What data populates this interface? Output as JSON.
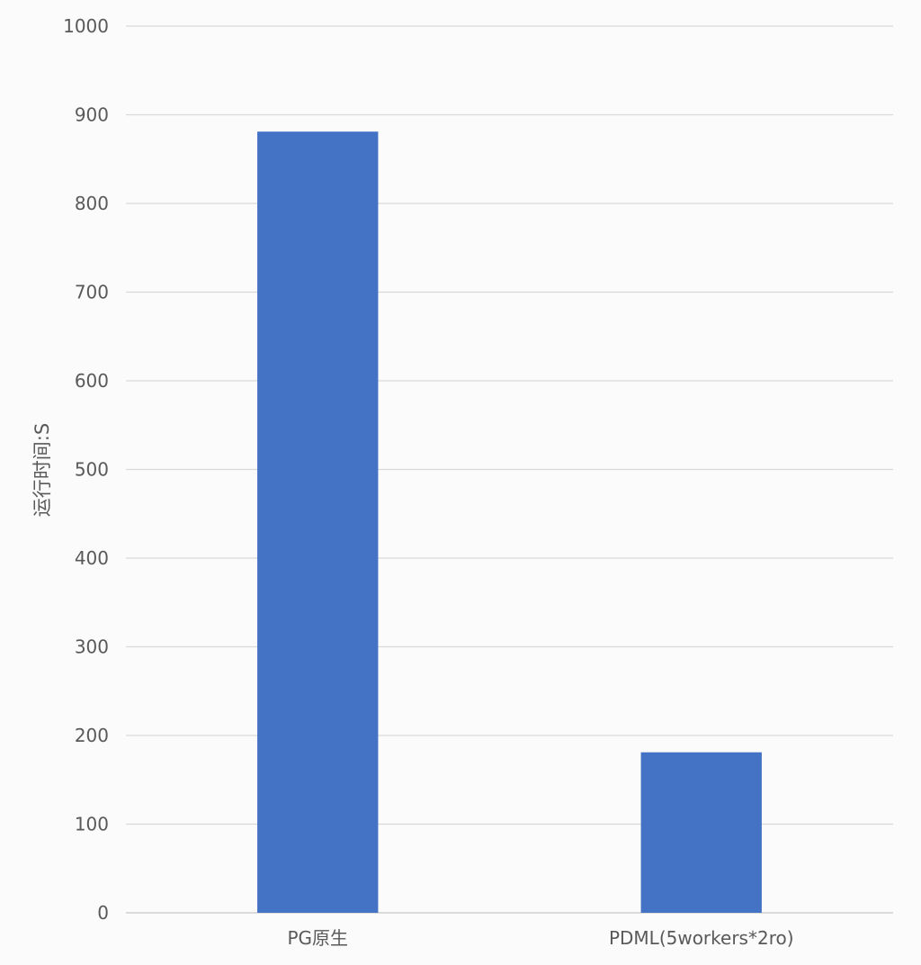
{
  "chart_data": {
    "type": "bar",
    "title": "",
    "xlabel": "",
    "ylabel": "运行时间:S",
    "categories": [
      "PG原生",
      "PDML(5workers*2ro)"
    ],
    "series": [
      {
        "values": [
          881,
          181
        ],
        "color": "#4472c4"
      }
    ],
    "ylim": [
      0,
      1000
    ],
    "yticks": [
      0,
      100,
      200,
      300,
      400,
      500,
      600,
      700,
      800,
      900,
      1000
    ],
    "grid": true,
    "legend": "none"
  }
}
